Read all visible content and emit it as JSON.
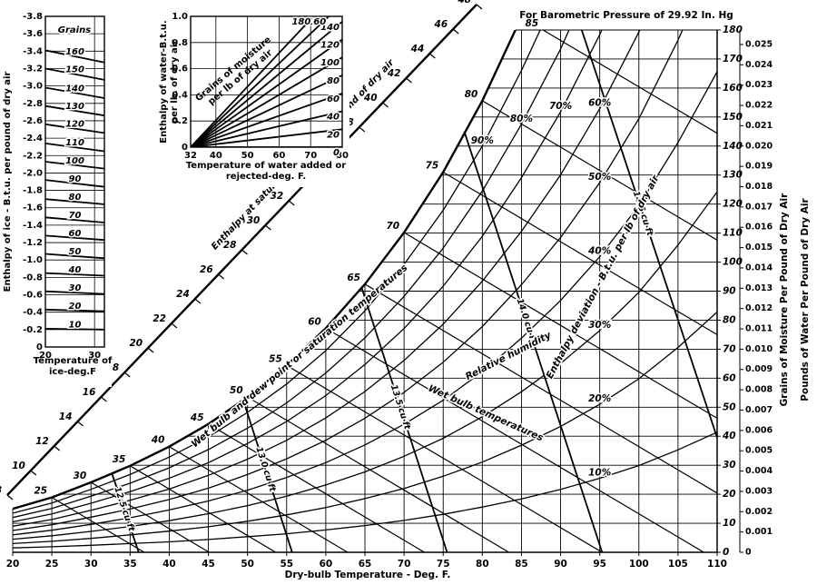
{
  "chart_data": [
    {
      "type": "line",
      "title": "For Barometric Pressure of 29.92 In. Hg",
      "xlabel": "Dry-bulb Temperature - Deg. F.",
      "ylabel": "Grains of Moisture Per Pound of Dry Air",
      "y2label": "Pounds of Water Per Pound of Dry Air",
      "xlim": [
        20,
        110
      ],
      "xticks": [
        20,
        25,
        30,
        35,
        40,
        45,
        50,
        55,
        60,
        65,
        70,
        75,
        80,
        85,
        90,
        95,
        100,
        105,
        110
      ],
      "ylim": [
        0,
        180
      ],
      "yticks": [
        0,
        10,
        20,
        30,
        40,
        50,
        60,
        70,
        80,
        90,
        100,
        110,
        120,
        130,
        140,
        150,
        160,
        170,
        180
      ],
      "y2lim": [
        0,
        0.025714
      ],
      "y2ticks": [
        0,
        0.001,
        0.002,
        0.003,
        0.004,
        0.005,
        0.006,
        0.007,
        0.008,
        0.009,
        {
          "value": 0.01,
          "label": "0.010"
        },
        0.011,
        0.012,
        0.013,
        0.014,
        0.015,
        0.016,
        0.017,
        0.018,
        0.019,
        {
          "value": 0.02,
          "label": "0.020"
        },
        0.021,
        0.022,
        0.023,
        0.024,
        0.025
      ],
      "grid": true,
      "color": "#000000",
      "x": [
        20,
        25,
        30,
        35,
        40,
        45,
        50,
        55,
        60,
        65,
        70,
        75,
        80,
        85,
        90,
        95,
        100,
        105,
        110
      ],
      "series": [
        {
          "values": [
            15,
            18.9,
            24.1,
            29.8,
            36.4,
            44.2,
            53.5,
            64.4,
            77.2,
            92.4,
            110.2,
            131,
            155.6,
            184.4,
            null,
            null,
            null,
            null,
            null
          ]
        },
        {
          "name": "10%",
          "values": [
            1.5,
            1.9,
            2.4,
            3,
            3.6,
            4.4,
            5.4,
            6.4,
            7.7,
            9.2,
            11,
            13.1,
            15.6,
            18.4,
            21.7,
            25.5,
            29.9,
            35.3,
            41.4
          ]
        },
        {
          "name": "20%",
          "values": [
            3,
            3.8,
            4.8,
            6,
            7.3,
            8.8,
            10.7,
            12.9,
            15.4,
            18.5,
            22,
            26.2,
            31.1,
            36.9,
            43.4,
            51,
            59.8,
            70.6,
            82.8
          ]
        },
        {
          "name": "30%",
          "values": [
            4.5,
            5.7,
            7.2,
            8.9,
            10.9,
            13.3,
            16.1,
            19.3,
            23.2,
            27.7,
            33.1,
            39.3,
            46.7,
            55.3,
            65.1,
            76.4,
            89.6,
            105.9,
            124.2
          ]
        },
        {
          "name": "40%",
          "values": [
            6,
            7.6,
            9.6,
            11.9,
            14.6,
            17.7,
            21.4,
            25.8,
            30.9,
            37,
            44.1,
            52.4,
            62.2,
            73.8,
            86.8,
            101.9,
            119.5,
            141.2,
            165.6
          ]
        },
        {
          "name": "50%",
          "values": [
            7.5,
            9.5,
            12.1,
            14.9,
            18.2,
            22.1,
            26.8,
            32.2,
            38.6,
            46.2,
            55.1,
            65.5,
            77.8,
            92.2,
            108.5,
            127.4,
            149.4,
            176.5,
            207
          ]
        },
        {
          "name": "60%",
          "values": [
            9,
            11.3,
            14.5,
            17.9,
            21.8,
            26.5,
            32.1,
            38.6,
            46.3,
            55.4,
            66.1,
            78.6,
            93.4,
            110.6,
            130.1,
            152.9,
            179.3,
            211.8,
            null
          ]
        },
        {
          "name": "70%",
          "values": [
            10.5,
            13.2,
            16.9,
            20.9,
            25.5,
            30.9,
            37.5,
            45.1,
            54,
            64.7,
            77.1,
            91.7,
            108.9,
            129.1,
            151.8,
            178.4,
            209.2,
            null,
            null
          ]
        },
        {
          "name": "80%",
          "values": [
            12,
            15.1,
            19.3,
            23.8,
            29.1,
            35.4,
            42.8,
            51.5,
            61.8,
            73.9,
            88.2,
            104.8,
            124.5,
            147.5,
            173.5,
            203.8,
            null,
            null,
            null
          ]
        },
        {
          "name": "90%",
          "values": [
            13.5,
            17,
            21.7,
            26.8,
            32.8,
            39.8,
            48.2,
            58,
            69.5,
            83.2,
            99.2,
            117.9,
            140,
            166,
            195.2,
            null,
            null,
            null,
            null
          ]
        }
      ],
      "wet_bulb_lines": {
        "label": "Wet bulb temperatures",
        "series": [
          {
            "name": "25",
            "x": [
              25,
              36.8
            ],
            "values": [
              18.9,
              0
            ]
          },
          {
            "name": "30",
            "x": [
              30,
              45.1
            ],
            "values": [
              24.1,
              0
            ]
          },
          {
            "name": "35",
            "x": [
              35,
              53.6
            ],
            "values": [
              29.8,
              0
            ]
          },
          {
            "name": "40",
            "x": [
              40,
              62.8
            ],
            "values": [
              36.4,
              0
            ]
          },
          {
            "name": "45",
            "x": [
              45,
              72.6
            ],
            "values": [
              44.2,
              0
            ]
          },
          {
            "name": "50",
            "x": [
              50,
              83.4
            ],
            "values": [
              53.5,
              0
            ]
          },
          {
            "name": "55",
            "x": [
              55,
              95.3
            ],
            "values": [
              64.4,
              0
            ]
          },
          {
            "name": "60",
            "x": [
              60,
              108.3
            ],
            "values": [
              77.2,
              0
            ]
          },
          {
            "name": "65",
            "x": [
              65,
              110
            ],
            "values": [
              92.4,
              20.4
            ]
          },
          {
            "name": "70",
            "x": [
              70,
              110
            ],
            "values": [
              110.2,
              46.2
            ]
          },
          {
            "name": "75",
            "x": [
              75,
              110
            ],
            "values": [
              131,
              75
            ]
          },
          {
            "name": "80",
            "x": [
              80,
              110
            ],
            "values": [
              155.6,
              107.6
            ]
          },
          {
            "name": "85",
            "x": [
              85,
              110
            ],
            "values": [
              184.4,
              144.4
            ]
          }
        ]
      },
      "volume_lines": [
        {
          "name": "12.5 cu ft",
          "x": [
            36.1,
            32.7
          ],
          "values": [
            0,
            27
          ]
        },
        {
          "name": "13.0 cu ft",
          "x": [
            55.7,
            49.5
          ],
          "values": [
            0,
            52
          ]
        },
        {
          "name": "13.5 cu ft",
          "x": [
            75.5,
            64.6
          ],
          "values": [
            0,
            91
          ]
        },
        {
          "name": "14.0 cu ft",
          "x": [
            95.3,
            77.7
          ],
          "values": [
            0,
            145
          ]
        },
        {
          "name": "14.5 cu ft",
          "x": [
            110,
            92.7
          ],
          "values": [
            39.5,
            180
          ]
        }
      ],
      "enthalpy_scale": {
        "label": "Enthalpy at saturation - B.t.u. per pound of dry air",
        "lim": [
          8,
          48
        ],
        "ticks": [
          8,
          10,
          12,
          14,
          16,
          18,
          20,
          22,
          24,
          26,
          28,
          30,
          32,
          34,
          36,
          38,
          40,
          42,
          44,
          46,
          48
        ]
      },
      "annotations": [
        "Wet bulb and dew point or saturation temperatures",
        "Relative humidity",
        "Enthalpy deviation - B.t.u. per lb of dry air"
      ]
    },
    {
      "type": "line",
      "xlabel": "Temperature of ice-deg.F",
      "ylabel": "Enthalpy of ice - B.t.u. per pound of dry air",
      "annotation": "Grains",
      "xlim": [
        20,
        32
      ],
      "xticks": [
        20,
        30
      ],
      "ylim": [
        0,
        -3.8
      ],
      "yticks": [
        0,
        -0.2,
        -0.4,
        -0.6,
        -0.8,
        {
          "value": -1,
          "label": "-1.0"
        },
        -1.2,
        -1.4,
        -1.6,
        -1.8,
        {
          "value": -2,
          "label": "-2.0"
        },
        -2.2,
        -2.4,
        -2.6,
        -2.8,
        {
          "value": -3,
          "label": "-3.0"
        },
        -3.2,
        -3.4,
        -3.6,
        -3.8
      ],
      "grid": true,
      "x": [
        20,
        32
      ],
      "series": [
        {
          "name": "10",
          "values": [
            -0.21,
            -0.2
          ]
        },
        {
          "name": "20",
          "values": [
            -0.43,
            -0.41
          ]
        },
        {
          "name": "30",
          "values": [
            -0.64,
            -0.61
          ]
        },
        {
          "name": "40",
          "values": [
            -0.85,
            -0.82
          ]
        },
        {
          "name": "50",
          "values": [
            -1.07,
            -1.02
          ]
        },
        {
          "name": "60",
          "values": [
            -1.28,
            -1.23
          ]
        },
        {
          "name": "70",
          "values": [
            -1.49,
            -1.43
          ]
        },
        {
          "name": "80",
          "values": [
            -1.7,
            -1.64
          ]
        },
        {
          "name": "90",
          "values": [
            -1.92,
            -1.84
          ]
        },
        {
          "name": "100",
          "values": [
            -2.13,
            -2.05
          ]
        },
        {
          "name": "110",
          "values": [
            -2.34,
            -2.25
          ]
        },
        {
          "name": "120",
          "values": [
            -2.56,
            -2.46
          ]
        },
        {
          "name": "130",
          "values": [
            -2.77,
            -2.66
          ]
        },
        {
          "name": "140",
          "values": [
            -2.98,
            -2.86
          ]
        },
        {
          "name": "150",
          "values": [
            -3.2,
            -3.07
          ]
        },
        {
          "name": "160",
          "values": [
            -3.41,
            -3.27
          ]
        }
      ]
    },
    {
      "type": "line",
      "xlabel": "Temperature of water added or rejected-deg. F.",
      "ylabel": "Enthalpy of water-B.t.u. per lb. of dry air",
      "annotation": "Grains of moisture per lb of dry air",
      "xlim": [
        32,
        80
      ],
      "xticks": [
        32,
        40,
        50,
        60,
        70,
        80
      ],
      "ylim": [
        0,
        1
      ],
      "yticks": [
        0,
        0.2,
        0.4,
        0.6,
        0.8,
        {
          "value": 1,
          "label": "1.0"
        }
      ],
      "grid": true,
      "x": [
        32,
        80
      ],
      "series": [
        {
          "name": "0",
          "values": [
            0,
            0
          ]
        },
        {
          "name": "20",
          "values": [
            0,
            0.137
          ]
        },
        {
          "name": "40",
          "values": [
            0,
            0.274
          ]
        },
        {
          "name": "60",
          "values": [
            0,
            0.411
          ]
        },
        {
          "name": "80",
          "values": [
            0,
            0.549
          ]
        },
        {
          "name": "100",
          "values": [
            0,
            0.686
          ]
        },
        {
          "name": "120",
          "values": [
            0,
            0.823
          ]
        },
        {
          "name": "140",
          "values": [
            0,
            0.96
          ]
        },
        {
          "name": "160",
          "values": [
            0,
            1.097
          ]
        },
        {
          "name": "180",
          "values": [
            0,
            1.234
          ]
        }
      ]
    }
  ]
}
